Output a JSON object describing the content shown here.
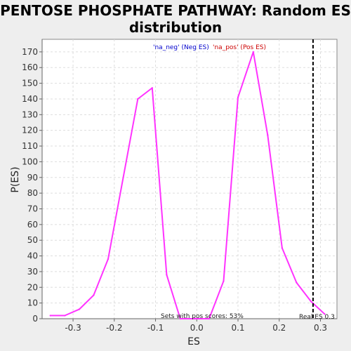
{
  "chart_data": {
    "type": "line",
    "title_line1": "PENTOSE PHOSPHATE PATHWAY: Random ES",
    "title_line2": "distribution",
    "xlabel": "ES",
    "ylabel": "P(ES)",
    "xlim": [
      -0.375,
      0.34
    ],
    "ylim": [
      0,
      178
    ],
    "x_ticks": [
      -0.3,
      -0.2,
      -0.1,
      0.0,
      0.1,
      0.2,
      0.3
    ],
    "x_tick_labels": [
      "-0.3",
      "-0.2",
      "-0.1",
      "0.0",
      "0.1",
      "0.2",
      "0.3"
    ],
    "y_ticks": [
      0,
      10,
      20,
      30,
      40,
      50,
      60,
      70,
      80,
      90,
      100,
      110,
      120,
      130,
      140,
      150,
      160,
      170
    ],
    "y_tick_labels": [
      "0",
      "10",
      "20",
      "30",
      "40",
      "50",
      "60",
      "70",
      "80",
      "90",
      "100",
      "110",
      "120",
      "130",
      "140",
      "150",
      "160",
      "170"
    ],
    "grid": true,
    "legend": {
      "placement": "top-center",
      "neg_text": "'na_neg' (Neg ES)",
      "neg_color": "#0000cc",
      "pos_text": "'na_pos' (Pos ES)",
      "pos_color": "#cc0000"
    },
    "series": [
      {
        "color": "#ff33ff",
        "x": [
          -0.355,
          -0.32,
          -0.285,
          -0.25,
          -0.215,
          -0.143,
          -0.108,
          -0.073,
          -0.04,
          -0.005,
          0.03,
          0.065,
          0.1,
          0.137,
          0.172,
          0.207,
          0.242,
          0.277,
          0.31
        ],
        "y": [
          2,
          2,
          6,
          15,
          38,
          140,
          147,
          28,
          0,
          0,
          0,
          24,
          141,
          170,
          117,
          45,
          23,
          11,
          3
        ]
      }
    ],
    "real_es": {
      "x": 0.282,
      "label": "Real ES 0.3"
    },
    "annotation": "Sets with pos scores: 53%"
  },
  "colors": {
    "background": "#eeeeee",
    "plot_background": "#ffffff",
    "grid": "#dddddd",
    "line": "#ff33ff"
  }
}
